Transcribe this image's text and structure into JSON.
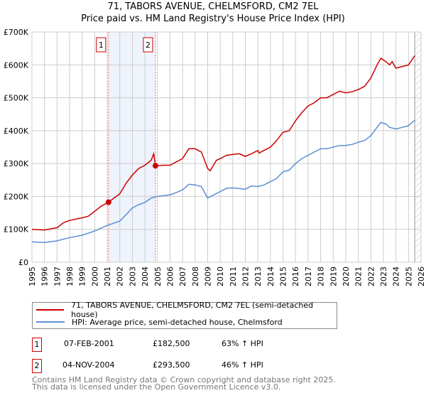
{
  "chart_data": {
    "type": "line",
    "title": "71, TABORS AVENUE, CHELMSFORD, CM2 7EL",
    "subtitle": "Price paid vs. HM Land Registry's House Price Index (HPI)",
    "xlim": [
      1995,
      2026
    ],
    "ylim": [
      0,
      700000
    ],
    "yticks": [
      0,
      100000,
      200000,
      300000,
      400000,
      500000,
      600000,
      700000
    ],
    "ytick_labels": [
      "£0",
      "£100K",
      "£200K",
      "£300K",
      "£400K",
      "£500K",
      "£600K",
      "£700K"
    ],
    "xticks": [
      1995,
      1996,
      1997,
      1998,
      1999,
      2000,
      2001,
      2002,
      2003,
      2004,
      2005,
      2006,
      2007,
      2008,
      2009,
      2010,
      2011,
      2012,
      2013,
      2014,
      2015,
      2016,
      2017,
      2018,
      2019,
      2020,
      2021,
      2022,
      2023,
      2024,
      2025,
      2026
    ],
    "grid": true,
    "shaded_region": [
      2001.1,
      2004.84
    ],
    "forecast_hatch_from": 2025.5,
    "series": [
      {
        "name": "71, TABORS AVENUE, CHELMSFORD, CM2 7EL (semi-detached house)",
        "color": "#cc0000",
        "x": [
          1995,
          1996,
          1997,
          1997.5,
          1998,
          1999,
          1999.5,
          2000,
          2000.5,
          2001.1,
          2002,
          2002.5,
          2003,
          2003.5,
          2004,
          2004.5,
          2004.7,
          2004.85,
          2005.5,
          2006,
          2006.5,
          2007,
          2007.5,
          2008,
          2008.5,
          2009,
          2009.2,
          2009.7,
          2010,
          2010.5,
          2011,
          2011.5,
          2012,
          2012.5,
          2013,
          2013.1,
          2013.5,
          2014,
          2014.5,
          2015,
          2015.5,
          2016,
          2016.5,
          2017,
          2017.5,
          2018,
          2018.5,
          2019,
          2019.5,
          2020,
          2020.5,
          2021,
          2021.5,
          2022,
          2022.5,
          2022.8,
          2023.2,
          2023.5,
          2023.7,
          2024,
          2024.5,
          2025,
          2025.5
        ],
        "y": [
          100,
          98,
          105,
          120,
          127,
          135,
          140,
          155,
          170,
          182.5,
          208,
          240,
          265,
          285,
          295,
          310,
          330,
          293.5,
          295,
          295,
          305,
          315,
          345,
          345,
          335,
          285,
          278,
          310,
          315,
          325,
          328,
          330,
          322,
          330,
          340,
          332,
          340,
          350,
          370,
          395,
          400,
          430,
          455,
          475,
          485,
          500,
          500,
          510,
          520,
          515,
          518,
          525,
          535,
          560,
          600,
          620,
          610,
          600,
          610,
          590,
          595,
          600,
          628
        ]
      },
      {
        "name": "HPI: Average price, semi-detached house, Chelmsford",
        "color": "#5b8fd4",
        "x": [
          1995,
          1996,
          1997,
          1998,
          1999,
          2000,
          2001,
          2002,
          2002.5,
          2003,
          2003.5,
          2004,
          2004.5,
          2005,
          2006,
          2006.5,
          2007,
          2007.5,
          2008,
          2008.5,
          2009,
          2009.5,
          2010,
          2010.5,
          2011,
          2012,
          2012.5,
          2013,
          2013.5,
          2014,
          2014.5,
          2015,
          2015.5,
          2016,
          2016.5,
          2017,
          2017.5,
          2018,
          2018.5,
          2019,
          2019.5,
          2020,
          2020.5,
          2021,
          2021.5,
          2022,
          2022.5,
          2022.8,
          2023.2,
          2023.5,
          2024,
          2024.5,
          2025,
          2025.5
        ],
        "y": [
          62,
          60,
          65,
          75,
          82,
          95,
          112,
          125,
          145,
          165,
          175,
          182,
          195,
          200,
          205,
          212,
          220,
          237,
          235,
          230,
          195,
          205,
          215,
          225,
          226,
          222,
          232,
          230,
          235,
          245,
          255,
          275,
          280,
          300,
          315,
          325,
          335,
          345,
          345,
          350,
          355,
          355,
          358,
          365,
          370,
          385,
          410,
          425,
          420,
          410,
          405,
          410,
          415,
          432
        ]
      }
    ],
    "y_unit_multiplier": 1000,
    "sales": [
      {
        "label": "1",
        "x": 2001.1,
        "price": 182500
      },
      {
        "label": "2",
        "x": 2004.84,
        "price": 293500
      }
    ]
  },
  "legend": {
    "items": [
      "71, TABORS AVENUE, CHELMSFORD, CM2 7EL (semi-detached house)",
      "HPI: Average price, semi-detached house, Chelmsford"
    ]
  },
  "transactions": [
    {
      "num": "1",
      "date": "07-FEB-2001",
      "price": "£182,500",
      "hpi": "63% ↑ HPI"
    },
    {
      "num": "2",
      "date": "04-NOV-2004",
      "price": "£293,500",
      "hpi": "46% ↑ HPI"
    }
  ],
  "footer": {
    "line1": "Contains HM Land Registry data © Crown copyright and database right 2025.",
    "line2": "This data is licensed under the Open Government Licence v3.0."
  }
}
